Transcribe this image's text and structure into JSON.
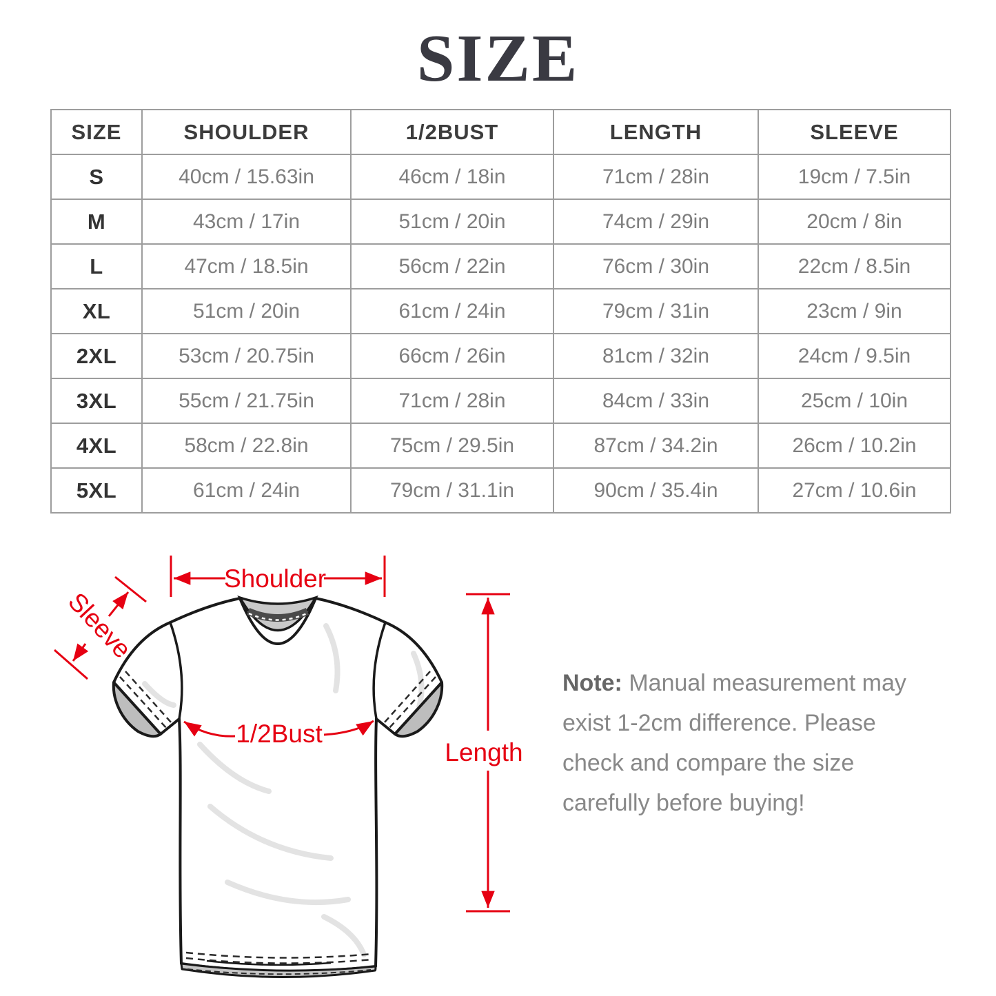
{
  "title": "SIZE",
  "table": {
    "columns": [
      "SIZE",
      "SHOULDER",
      "1/2BUST",
      "LENGTH",
      "SLEEVE"
    ],
    "rows": [
      {
        "label": "S",
        "cells": [
          "40cm / 15.63in",
          "46cm / 18in",
          "71cm / 28in",
          "19cm / 7.5in"
        ]
      },
      {
        "label": "M",
        "cells": [
          "43cm / 17in",
          "51cm / 20in",
          "74cm / 29in",
          "20cm / 8in"
        ]
      },
      {
        "label": "L",
        "cells": [
          "47cm / 18.5in",
          "56cm / 22in",
          "76cm / 30in",
          "22cm / 8.5in"
        ]
      },
      {
        "label": "XL",
        "cells": [
          "51cm / 20in",
          "61cm / 24in",
          "79cm / 31in",
          "23cm / 9in"
        ]
      },
      {
        "label": "2XL",
        "cells": [
          "53cm / 20.75in",
          "66cm / 26in",
          "81cm / 32in",
          "24cm / 9.5in"
        ]
      },
      {
        "label": "3XL",
        "cells": [
          "55cm / 21.75in",
          "71cm / 28in",
          "84cm / 33in",
          "25cm / 10in"
        ]
      },
      {
        "label": "4XL",
        "cells": [
          "58cm / 22.8in",
          "75cm / 29.5in",
          "87cm / 34.2in",
          "26cm / 10.2in"
        ]
      },
      {
        "label": "5XL",
        "cells": [
          "61cm / 24in",
          "79cm / 31.1in",
          "90cm / 35.4in",
          "27cm / 10.6in"
        ]
      }
    ]
  },
  "diagram": {
    "labels": {
      "shoulder": "Shoulder",
      "sleeve": "Sleeve",
      "half_bust": "1/2Bust",
      "length": "Length"
    },
    "accent_color": "#e60012"
  },
  "note": {
    "prefix": "Note:",
    "lines": [
      "Manual measurement may",
      "exist 1-2cm difference. Please",
      "check and compare the size",
      "carefully before buying!"
    ]
  }
}
